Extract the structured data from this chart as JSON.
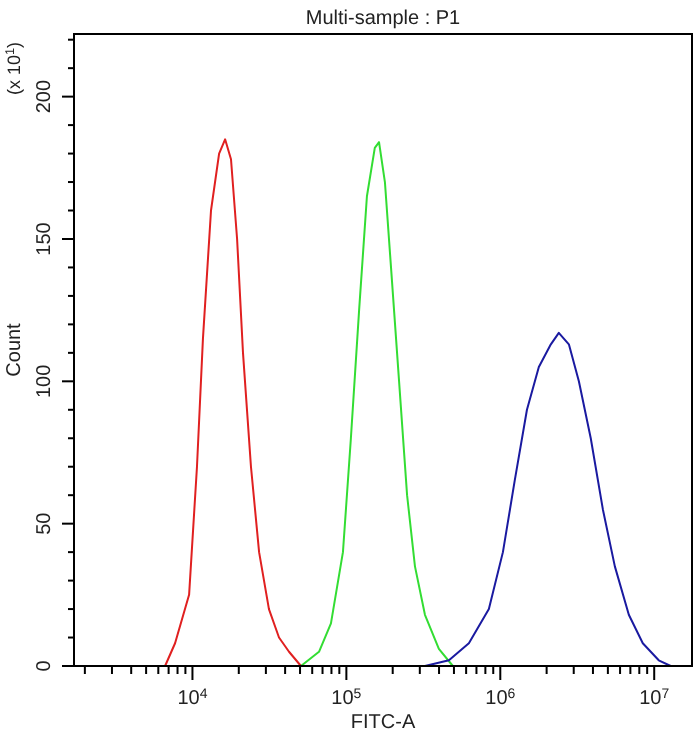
{
  "chart_data": {
    "type": "line",
    "title": "Multi-sample : P1",
    "xlabel": "FITC-A",
    "ylabel": "Count",
    "annotations": [
      "(x 10$^{1}$)"
    ],
    "log": "x",
    "grid": false,
    "marker": "none",
    "line_style": "solid",
    "xlim": [
      1700,
      17600000
    ],
    "ylim": [
      0,
      222
    ],
    "xticks": [
      {
        "value": 2000,
        "label": null
      },
      {
        "value": 3000,
        "label": null
      },
      {
        "value": 4000,
        "label": null
      },
      {
        "value": 5000,
        "label": null
      },
      {
        "value": 6000,
        "label": null
      },
      {
        "value": 7000,
        "label": null
      },
      {
        "value": 8000,
        "label": null
      },
      {
        "value": 9000,
        "label": null
      },
      {
        "value": 10000,
        "label": "10$^{4}$"
      },
      {
        "value": 20000,
        "label": null
      },
      {
        "value": 30000,
        "label": null
      },
      {
        "value": 40000,
        "label": null
      },
      {
        "value": 50000,
        "label": null
      },
      {
        "value": 60000,
        "label": null
      },
      {
        "value": 70000,
        "label": null
      },
      {
        "value": 80000,
        "label": null
      },
      {
        "value": 90000,
        "label": null
      },
      {
        "value": 100000,
        "label": "10$^{5}$"
      },
      {
        "value": 200000,
        "label": null
      },
      {
        "value": 300000,
        "label": null
      },
      {
        "value": 400000,
        "label": null
      },
      {
        "value": 500000,
        "label": null
      },
      {
        "value": 600000,
        "label": null
      },
      {
        "value": 700000,
        "label": null
      },
      {
        "value": 800000,
        "label": null
      },
      {
        "value": 900000,
        "label": null
      },
      {
        "value": 1000000,
        "label": "10$^{6}$"
      },
      {
        "value": 2000000,
        "label": null
      },
      {
        "value": 3000000,
        "label": null
      },
      {
        "value": 4000000,
        "label": null
      },
      {
        "value": 5000000,
        "label": null
      },
      {
        "value": 6000000,
        "label": null
      },
      {
        "value": 7000000,
        "label": null
      },
      {
        "value": 8000000,
        "label": null
      },
      {
        "value": 9000000,
        "label": null
      },
      {
        "value": 10000000,
        "label": "10$^{7}$"
      }
    ],
    "yticks": [
      0,
      {
        "value": 10,
        "label": null
      },
      {
        "value": 20,
        "label": null
      },
      {
        "value": 30,
        "label": null
      },
      {
        "value": 40,
        "label": null
      },
      50,
      {
        "value": 60,
        "label": null
      },
      {
        "value": 70,
        "label": null
      },
      {
        "value": 80,
        "label": null
      },
      {
        "value": 90,
        "label": null
      },
      100,
      {
        "value": 110,
        "label": null
      },
      {
        "value": 120,
        "label": null
      },
      {
        "value": 130,
        "label": null
      },
      {
        "value": 140,
        "label": null
      },
      150,
      {
        "value": 160,
        "label": null
      },
      {
        "value": 170,
        "label": null
      },
      {
        "value": 180,
        "label": null
      },
      {
        "value": 190,
        "label": null
      },
      200,
      {
        "value": 210,
        "label": null
      },
      {
        "value": 220,
        "label": null
      }
    ],
    "series": [
      {
        "color": "#e02020",
        "x": [
          6640,
          7710,
          9510,
          10700,
          11700,
          13200,
          14900,
          16300,
          17800,
          19500,
          21300,
          24000,
          27100,
          31400,
          36500,
          42400,
          50700
        ],
        "values": [
          0,
          8,
          25,
          70,
          115,
          160,
          180,
          185,
          178,
          150,
          110,
          70,
          40,
          20,
          10,
          5,
          0
        ]
      },
      {
        "color": "#33dd33",
        "x": [
          50700,
          66400,
          79400,
          95000,
          107000,
          121000,
          136000,
          153000,
          163000,
          178000,
          195000,
          220000,
          248000,
          279000,
          324000,
          399000,
          492000
        ],
        "values": [
          0,
          5,
          15,
          40,
          80,
          125,
          165,
          182,
          184,
          170,
          140,
          100,
          60,
          35,
          18,
          6,
          0
        ]
      },
      {
        "color": "#1a1aa0",
        "x": [
          324000,
          464000,
          625000,
          843000,
          1040000,
          1240000,
          1490000,
          1780000,
          2130000,
          2400000,
          2790000,
          3240000,
          3870000,
          4640000,
          5550000,
          6840000,
          8430000,
          10700000,
          12800000
        ],
        "values": [
          0,
          2,
          8,
          20,
          40,
          65,
          90,
          105,
          113,
          117,
          113,
          100,
          80,
          55,
          35,
          18,
          8,
          2,
          0
        ]
      }
    ]
  }
}
